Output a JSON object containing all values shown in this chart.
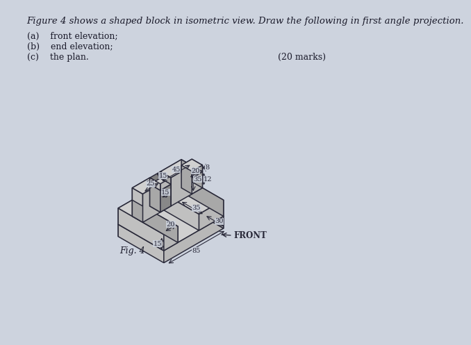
{
  "title_text": "Figure 4 shows a shaped block in isometric view. Draw the following in first angle projection.",
  "subtitle_a": "(a)    front elevation;",
  "subtitle_b": "(b)    end elevation;",
  "subtitle_c": "(c)    the plan.",
  "marks": "(20 marks)",
  "fig_label": "Fig. 4",
  "front_label": "FRONT",
  "bg_color": "#cdd3de",
  "line_color": "#2a2a3a",
  "dim_color": "#2a2a3a",
  "text_color": "#1a1a2a",
  "dim_fontsize": 7.0,
  "label_fontsize": 9.0,
  "title_fontsize": 9.5,
  "face_top": "#d0d0d0",
  "face_front": "#b8b8b8",
  "face_right": "#a8a8a8",
  "face_left": "#c0c0c0",
  "face_back": "#a0a0a0",
  "face_inner": "#909090"
}
